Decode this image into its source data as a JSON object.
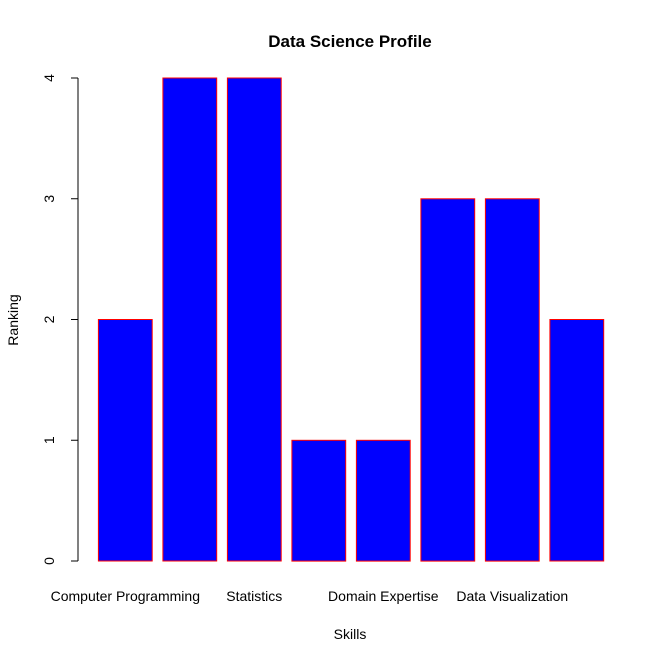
{
  "chart_data": {
    "type": "bar",
    "title": "Data Science Profile",
    "xlabel": "Skills",
    "ylabel": "Ranking",
    "categories": [
      "Computer Programming",
      "",
      "Statistics",
      "",
      "Domain Expertise",
      "",
      "Data Visualization",
      ""
    ],
    "values": [
      2,
      4,
      4,
      1,
      1,
      3,
      3,
      2
    ],
    "ylim": [
      0,
      4
    ],
    "yticks": [
      "0",
      "1",
      "2",
      "3",
      "4"
    ],
    "grid": false,
    "colors": {
      "fill": "#0000ff",
      "border": "#ff0000"
    }
  }
}
